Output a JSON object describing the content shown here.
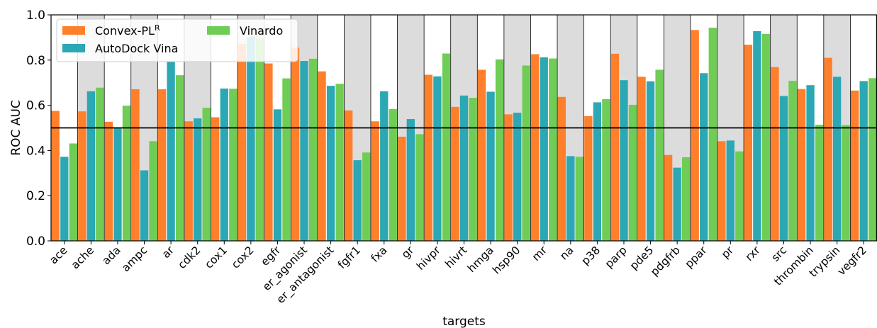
{
  "chart_data": {
    "type": "bar",
    "xlabel": "targets",
    "ylabel": "ROC AUC",
    "ylim": [
      0.0,
      1.0
    ],
    "yticks": [
      "0.0",
      "0.2",
      "0.4",
      "0.6",
      "0.8",
      "1.0"
    ],
    "reference_line": 0.5,
    "alternating_band_color": "#dcdcdc",
    "categories": [
      "ace",
      "ache",
      "ada",
      "ampc",
      "ar",
      "cdk2",
      "cox1",
      "cox2",
      "egfr",
      "er_agonist",
      "er_antagonist",
      "fgfr1",
      "fxa",
      "gr",
      "hivpr",
      "hivrt",
      "hmga",
      "hsp90",
      "mr",
      "na",
      "p38",
      "parp",
      "pde5",
      "pdgfrb",
      "ppar",
      "pr",
      "rxr",
      "src",
      "thrombin",
      "trypsin",
      "vegfr2"
    ],
    "series": [
      {
        "name": "Convex-PL",
        "name_superscript": "R",
        "color": "#ff7f2a",
        "values": [
          0.575,
          0.573,
          0.527,
          0.671,
          0.671,
          0.529,
          0.547,
          0.872,
          0.785,
          0.855,
          0.75,
          0.577,
          0.529,
          0.461,
          0.735,
          0.593,
          0.757,
          0.56,
          0.826,
          0.637,
          0.552,
          0.828,
          0.726,
          0.38,
          0.933,
          0.441,
          0.868,
          0.769,
          0.672,
          0.81,
          0.665
        ]
      },
      {
        "name": "AutoDock Vina",
        "color": "#2ba8b3",
        "values": [
          0.372,
          0.662,
          0.5,
          0.312,
          0.792,
          0.542,
          0.674,
          0.902,
          0.582,
          0.796,
          0.686,
          0.357,
          0.662,
          0.539,
          0.728,
          0.643,
          0.66,
          0.567,
          0.812,
          0.375,
          0.613,
          0.711,
          0.706,
          0.324,
          0.742,
          0.444,
          0.928,
          0.641,
          0.689,
          0.726,
          0.707
        ]
      },
      {
        "name": "Vinardo",
        "color": "#6fcc55",
        "values": [
          0.431,
          0.678,
          0.598,
          0.441,
          0.733,
          0.589,
          0.673,
          0.895,
          0.719,
          0.806,
          0.695,
          0.391,
          0.583,
          0.472,
          0.829,
          0.633,
          0.803,
          0.776,
          0.807,
          0.372,
          0.627,
          0.602,
          0.757,
          0.37,
          0.943,
          0.396,
          0.916,
          0.708,
          0.514,
          0.512,
          0.72
        ]
      }
    ],
    "legend": "top-left, two columns"
  }
}
